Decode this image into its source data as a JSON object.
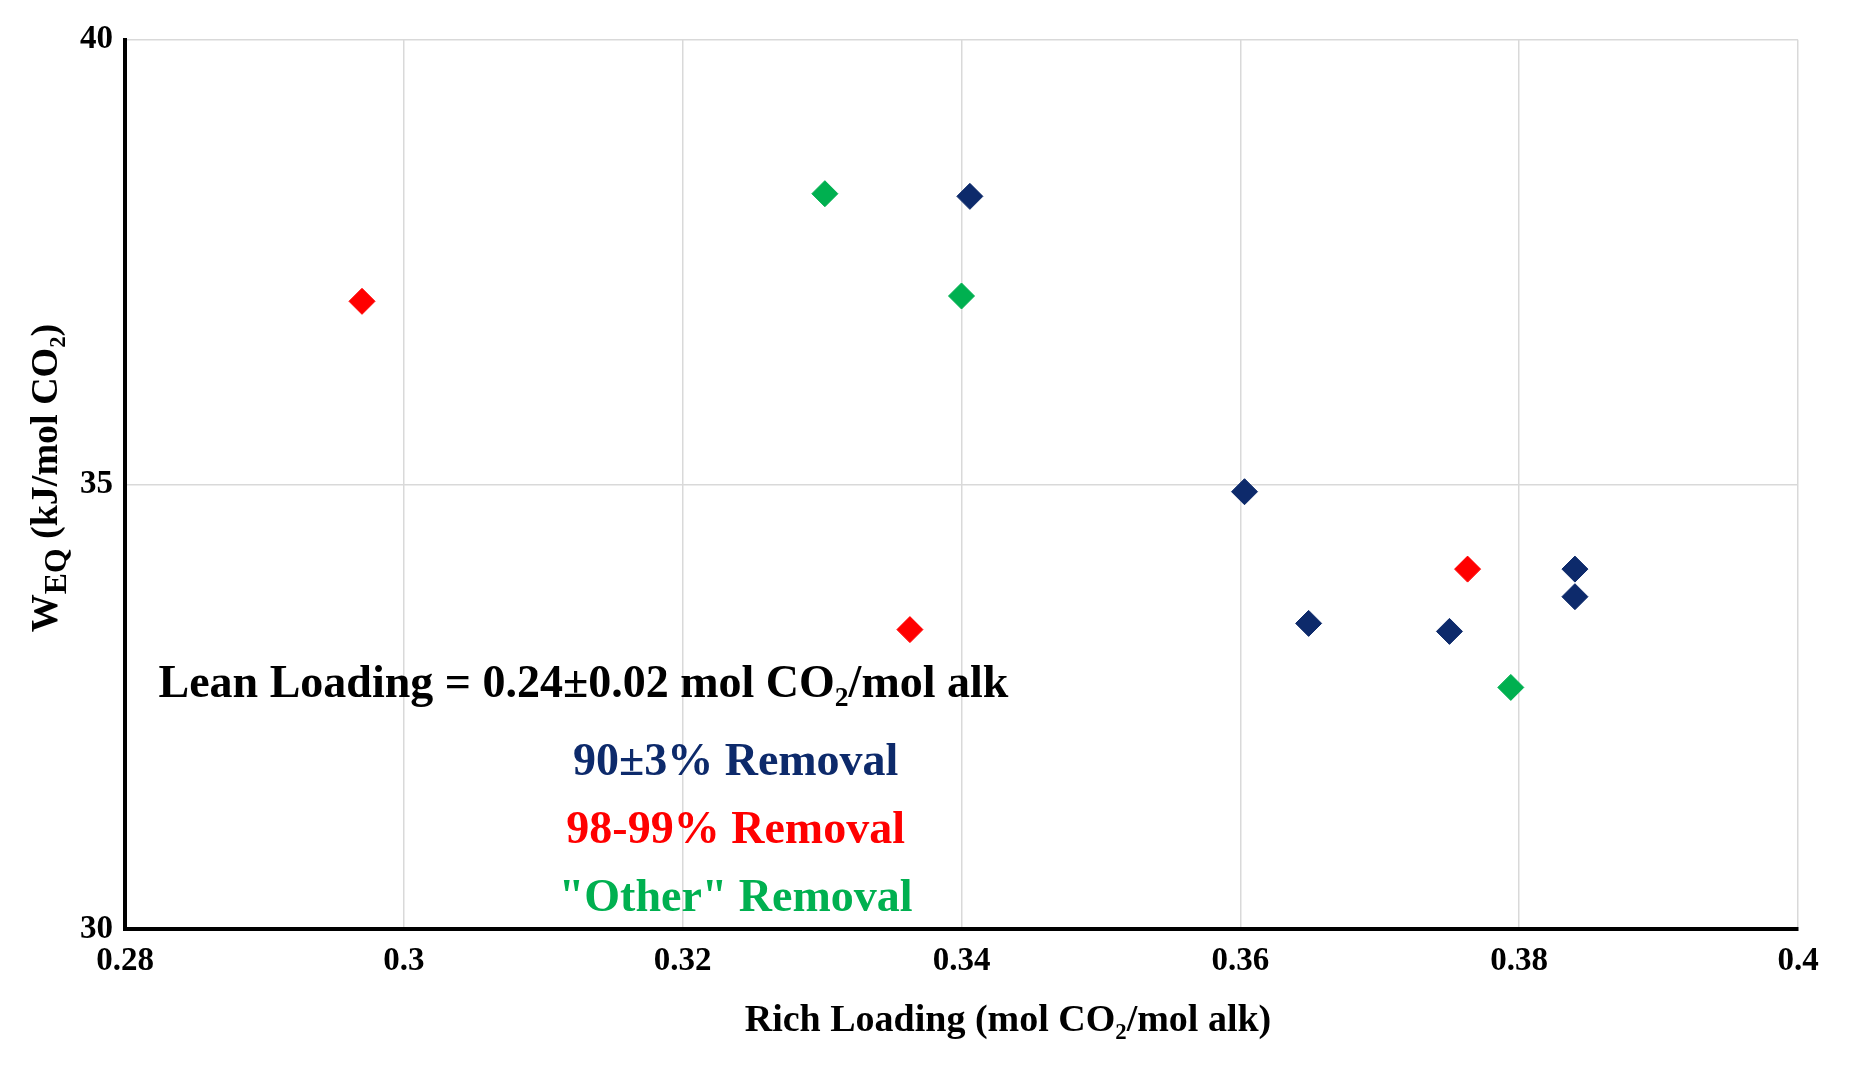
{
  "chart_data": {
    "type": "scatter",
    "xlabel": "Rich Loading (mol CO₂/mol alk)",
    "ylabel": "W$_{EQ}$ (kJ/mol CO₂)",
    "annotations": [
      "Lean Loading = 0.24±0.02 mol CO₂/mol alk"
    ],
    "series": [
      {
        "name": "90±3% Removal",
        "color": "#0d2a6b",
        "x": [
          0.3406,
          0.3603,
          0.3649,
          0.375,
          0.384,
          0.384
        ],
        "values": [
          38.24,
          34.92,
          33.44,
          33.35,
          34.05,
          33.74
        ]
      },
      {
        "name": "98-99% Removal",
        "color": "#ff0000",
        "x": [
          0.297,
          0.3363,
          0.3763
        ],
        "values": [
          37.06,
          33.37,
          34.05
        ]
      },
      {
        "name": "\"Other\" Removal",
        "color": "#00b050",
        "x": [
          0.3302,
          0.34,
          0.3794
        ],
        "values": [
          38.27,
          37.12,
          32.72
        ]
      }
    ],
    "xlim": [
      0.28,
      0.4
    ],
    "xticks": [
      0.28,
      0.3,
      0.32,
      0.34,
      0.36,
      0.38,
      0.4
    ],
    "ylim": [
      30,
      40
    ],
    "yticks": [
      30,
      35,
      40
    ],
    "grid": true,
    "legend": "bottom left",
    "marker": "diamond"
  }
}
